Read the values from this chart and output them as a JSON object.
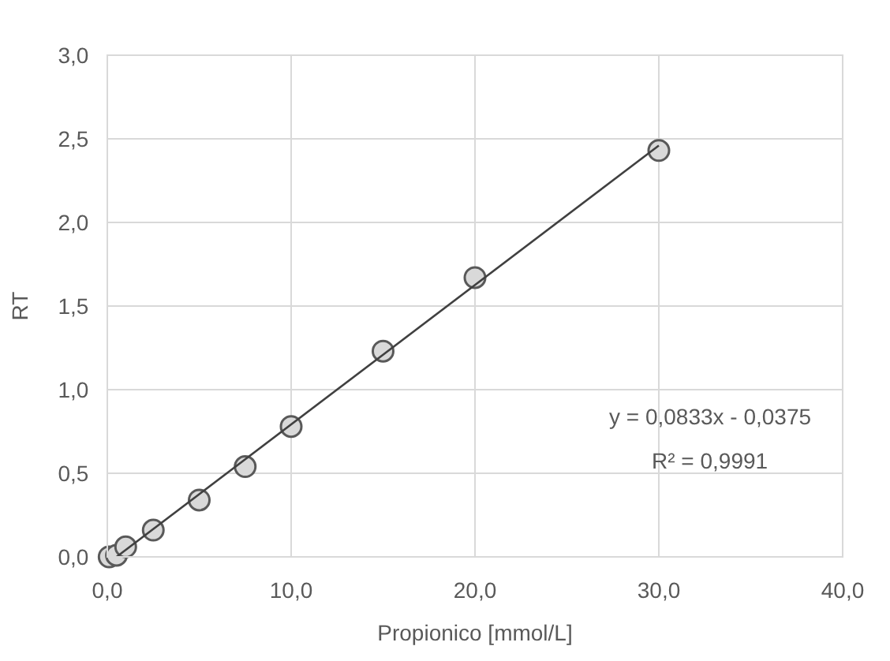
{
  "chart_data": {
    "type": "scatter",
    "xlabel": "Propionico [mmol/L]",
    "ylabel": "RT",
    "xlim": [
      0,
      40
    ],
    "xticks": [
      {
        "value": 0,
        "label": "0,0"
      },
      {
        "value": 10,
        "label": "10,0"
      },
      {
        "value": 20,
        "label": "20,0"
      },
      {
        "value": 30,
        "label": "30,0"
      },
      {
        "value": 40,
        "label": "40,0"
      }
    ],
    "ylim": [
      0,
      3
    ],
    "yticks": [
      {
        "value": 0,
        "label": "0,0"
      },
      {
        "value": 0.5,
        "label": "0,5"
      },
      {
        "value": 1,
        "label": "1,0"
      },
      {
        "value": 1.5,
        "label": "1,5"
      },
      {
        "value": 2,
        "label": "2,0"
      },
      {
        "value": 2.5,
        "label": "2,5"
      },
      {
        "value": 3,
        "label": "3,0"
      }
    ],
    "grid": true,
    "marker": "circle",
    "series": [
      {
        "color": "#d9d9d9",
        "x": [
          0.1,
          0.5,
          1,
          2.5,
          5,
          7.5,
          10,
          15,
          20,
          30
        ],
        "values": [
          0.0,
          0.01,
          0.06,
          0.16,
          0.34,
          0.54,
          0.78,
          1.23,
          1.67,
          2.43
        ]
      },
      {
        "type": "line",
        "color": "#404040",
        "x": [
          0.5,
          30
        ],
        "values": [
          0.0,
          2.46
        ],
        "marker": "none"
      }
    ],
    "annotations": [
      "y = 0,0833x - 0,0375",
      "R² = 0,9991"
    ]
  }
}
